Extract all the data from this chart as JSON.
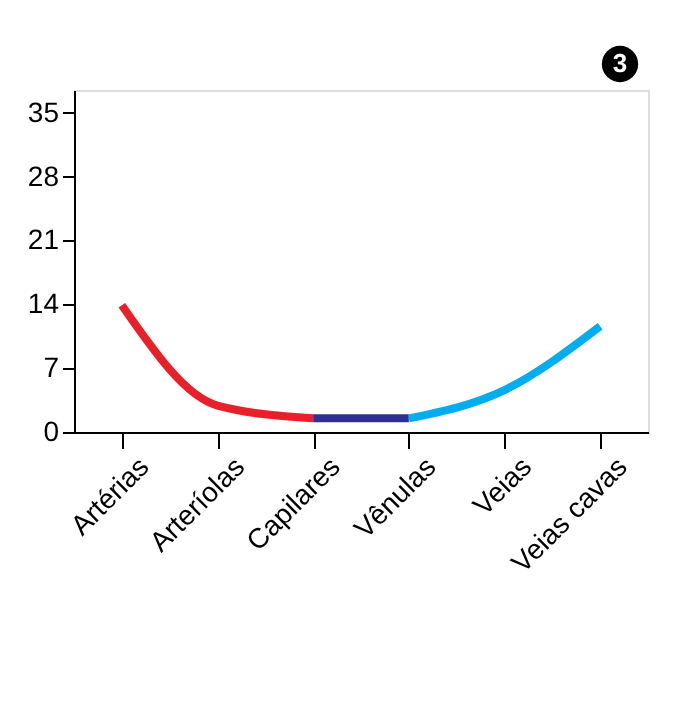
{
  "chart_data": {
    "type": "line",
    "categories": [
      "Artérias",
      "Arteríolas",
      "Capilares",
      "Vênulas",
      "Veias",
      "Veias cavas"
    ],
    "ylim": [
      0,
      37.5
    ],
    "yticks": [
      0,
      7,
      14,
      21,
      28,
      35
    ],
    "series": [
      {
        "color": "#e8202a",
        "values": [
          13.9,
          2.9,
          1.5,
          null,
          null,
          null
        ]
      },
      {
        "color": "#2e3192",
        "values": [
          null,
          null,
          1.5,
          1.5,
          null,
          null
        ]
      },
      {
        "color": "#00aeef",
        "values": [
          null,
          null,
          null,
          1.5,
          4.6,
          11.6
        ]
      }
    ],
    "grid": false,
    "marker": "none",
    "line_style": "solid",
    "annotations": [
      "3"
    ]
  }
}
